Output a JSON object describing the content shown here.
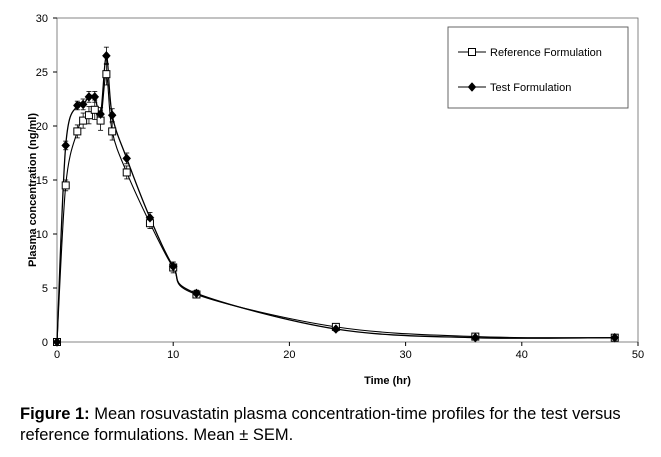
{
  "chart_data": {
    "type": "line",
    "xlabel": "Time (hr)",
    "ylabel": "Plasma concentration (ng/ml)",
    "xlim": [
      0,
      50
    ],
    "ylim": [
      0,
      30
    ],
    "x_ticks": [
      0,
      10,
      20,
      30,
      40,
      50
    ],
    "y_ticks": [
      0,
      5,
      10,
      15,
      20,
      25,
      30
    ],
    "grid": false,
    "legend_position": "top-right",
    "series": [
      {
        "name": "Reference Formulation",
        "marker": "open-square",
        "color": "#000000",
        "x": [
          0,
          0.75,
          1.75,
          2.25,
          2.75,
          3.25,
          3.75,
          4.25,
          4.75,
          6,
          8,
          10,
          12,
          24,
          36,
          48
        ],
        "y": [
          0,
          14.5,
          19.5,
          20.5,
          21.0,
          21.5,
          20.5,
          24.8,
          19.5,
          15.7,
          11.0,
          6.9,
          4.4,
          1.4,
          0.5,
          0.4
        ],
        "error": [
          0,
          0.5,
          0.6,
          0.7,
          0.8,
          0.9,
          0.9,
          1.0,
          0.8,
          0.6,
          0.5,
          0.5,
          0.3,
          0.2,
          0.1,
          0.1
        ]
      },
      {
        "name": "Test Formulation",
        "marker": "filled-diamond",
        "color": "#000000",
        "x": [
          0,
          0.75,
          1.75,
          2.25,
          2.75,
          3.25,
          3.75,
          4.25,
          4.75,
          6,
          8,
          10,
          12,
          24,
          36,
          48
        ],
        "y": [
          0,
          18.2,
          21.9,
          22.0,
          22.7,
          22.7,
          21.1,
          26.5,
          21.0,
          17.0,
          11.5,
          7.0,
          4.5,
          1.2,
          0.4,
          0.4
        ],
        "error": [
          0,
          0.4,
          0.4,
          0.5,
          0.5,
          0.5,
          0.6,
          0.8,
          0.6,
          0.5,
          0.5,
          0.4,
          0.3,
          0.2,
          0.1,
          0.1
        ]
      }
    ]
  },
  "caption": {
    "label": "Figure 1:",
    "text": " Mean rosuvastatin plasma concentration-time profiles for the test versus reference formulations. Mean ± SEM."
  }
}
